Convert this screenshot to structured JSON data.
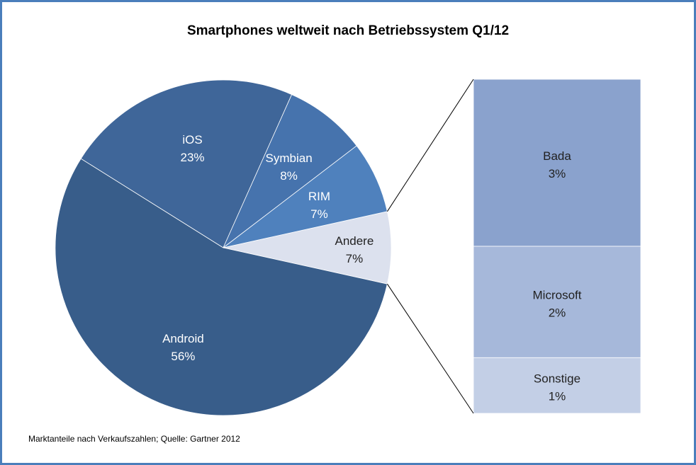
{
  "chart_data": {
    "type": "pie",
    "variant": "pie-of-bar",
    "title": "Smartphones weltweit nach Betriebssystem Q1/12",
    "footnote": "Marktanteile nach Verkaufszahlen; Quelle: Gartner 2012",
    "slices": [
      {
        "label": "Andere",
        "value": 7,
        "value_label": "7%",
        "color": "#dce1ee",
        "text_color": "#222222"
      },
      {
        "label": "Android",
        "value": 56,
        "value_label": "56%",
        "color": "#385d8a",
        "text_color": "#ffffff"
      },
      {
        "label": "iOS",
        "value": 23,
        "value_label": "23%",
        "color": "#3f6699",
        "text_color": "#ffffff"
      },
      {
        "label": "Symbian",
        "value": 8,
        "value_label": "8%",
        "color": "#4673ad",
        "text_color": "#ffffff"
      },
      {
        "label": "RIM",
        "value": 7,
        "value_label": "7%",
        "color": "#4f81bd",
        "text_color": "#ffffff"
      }
    ],
    "breakdown_of": "Andere",
    "breakdown": [
      {
        "label": "Bada",
        "value": 3,
        "value_label": "3%",
        "color": "#8aa2cd"
      },
      {
        "label": "Microsoft",
        "value": 2,
        "value_label": "2%",
        "color": "#a6b8da"
      },
      {
        "label": "Sonstige",
        "value": 1,
        "value_label": "1%",
        "color": "#c3cfe6"
      }
    ]
  }
}
